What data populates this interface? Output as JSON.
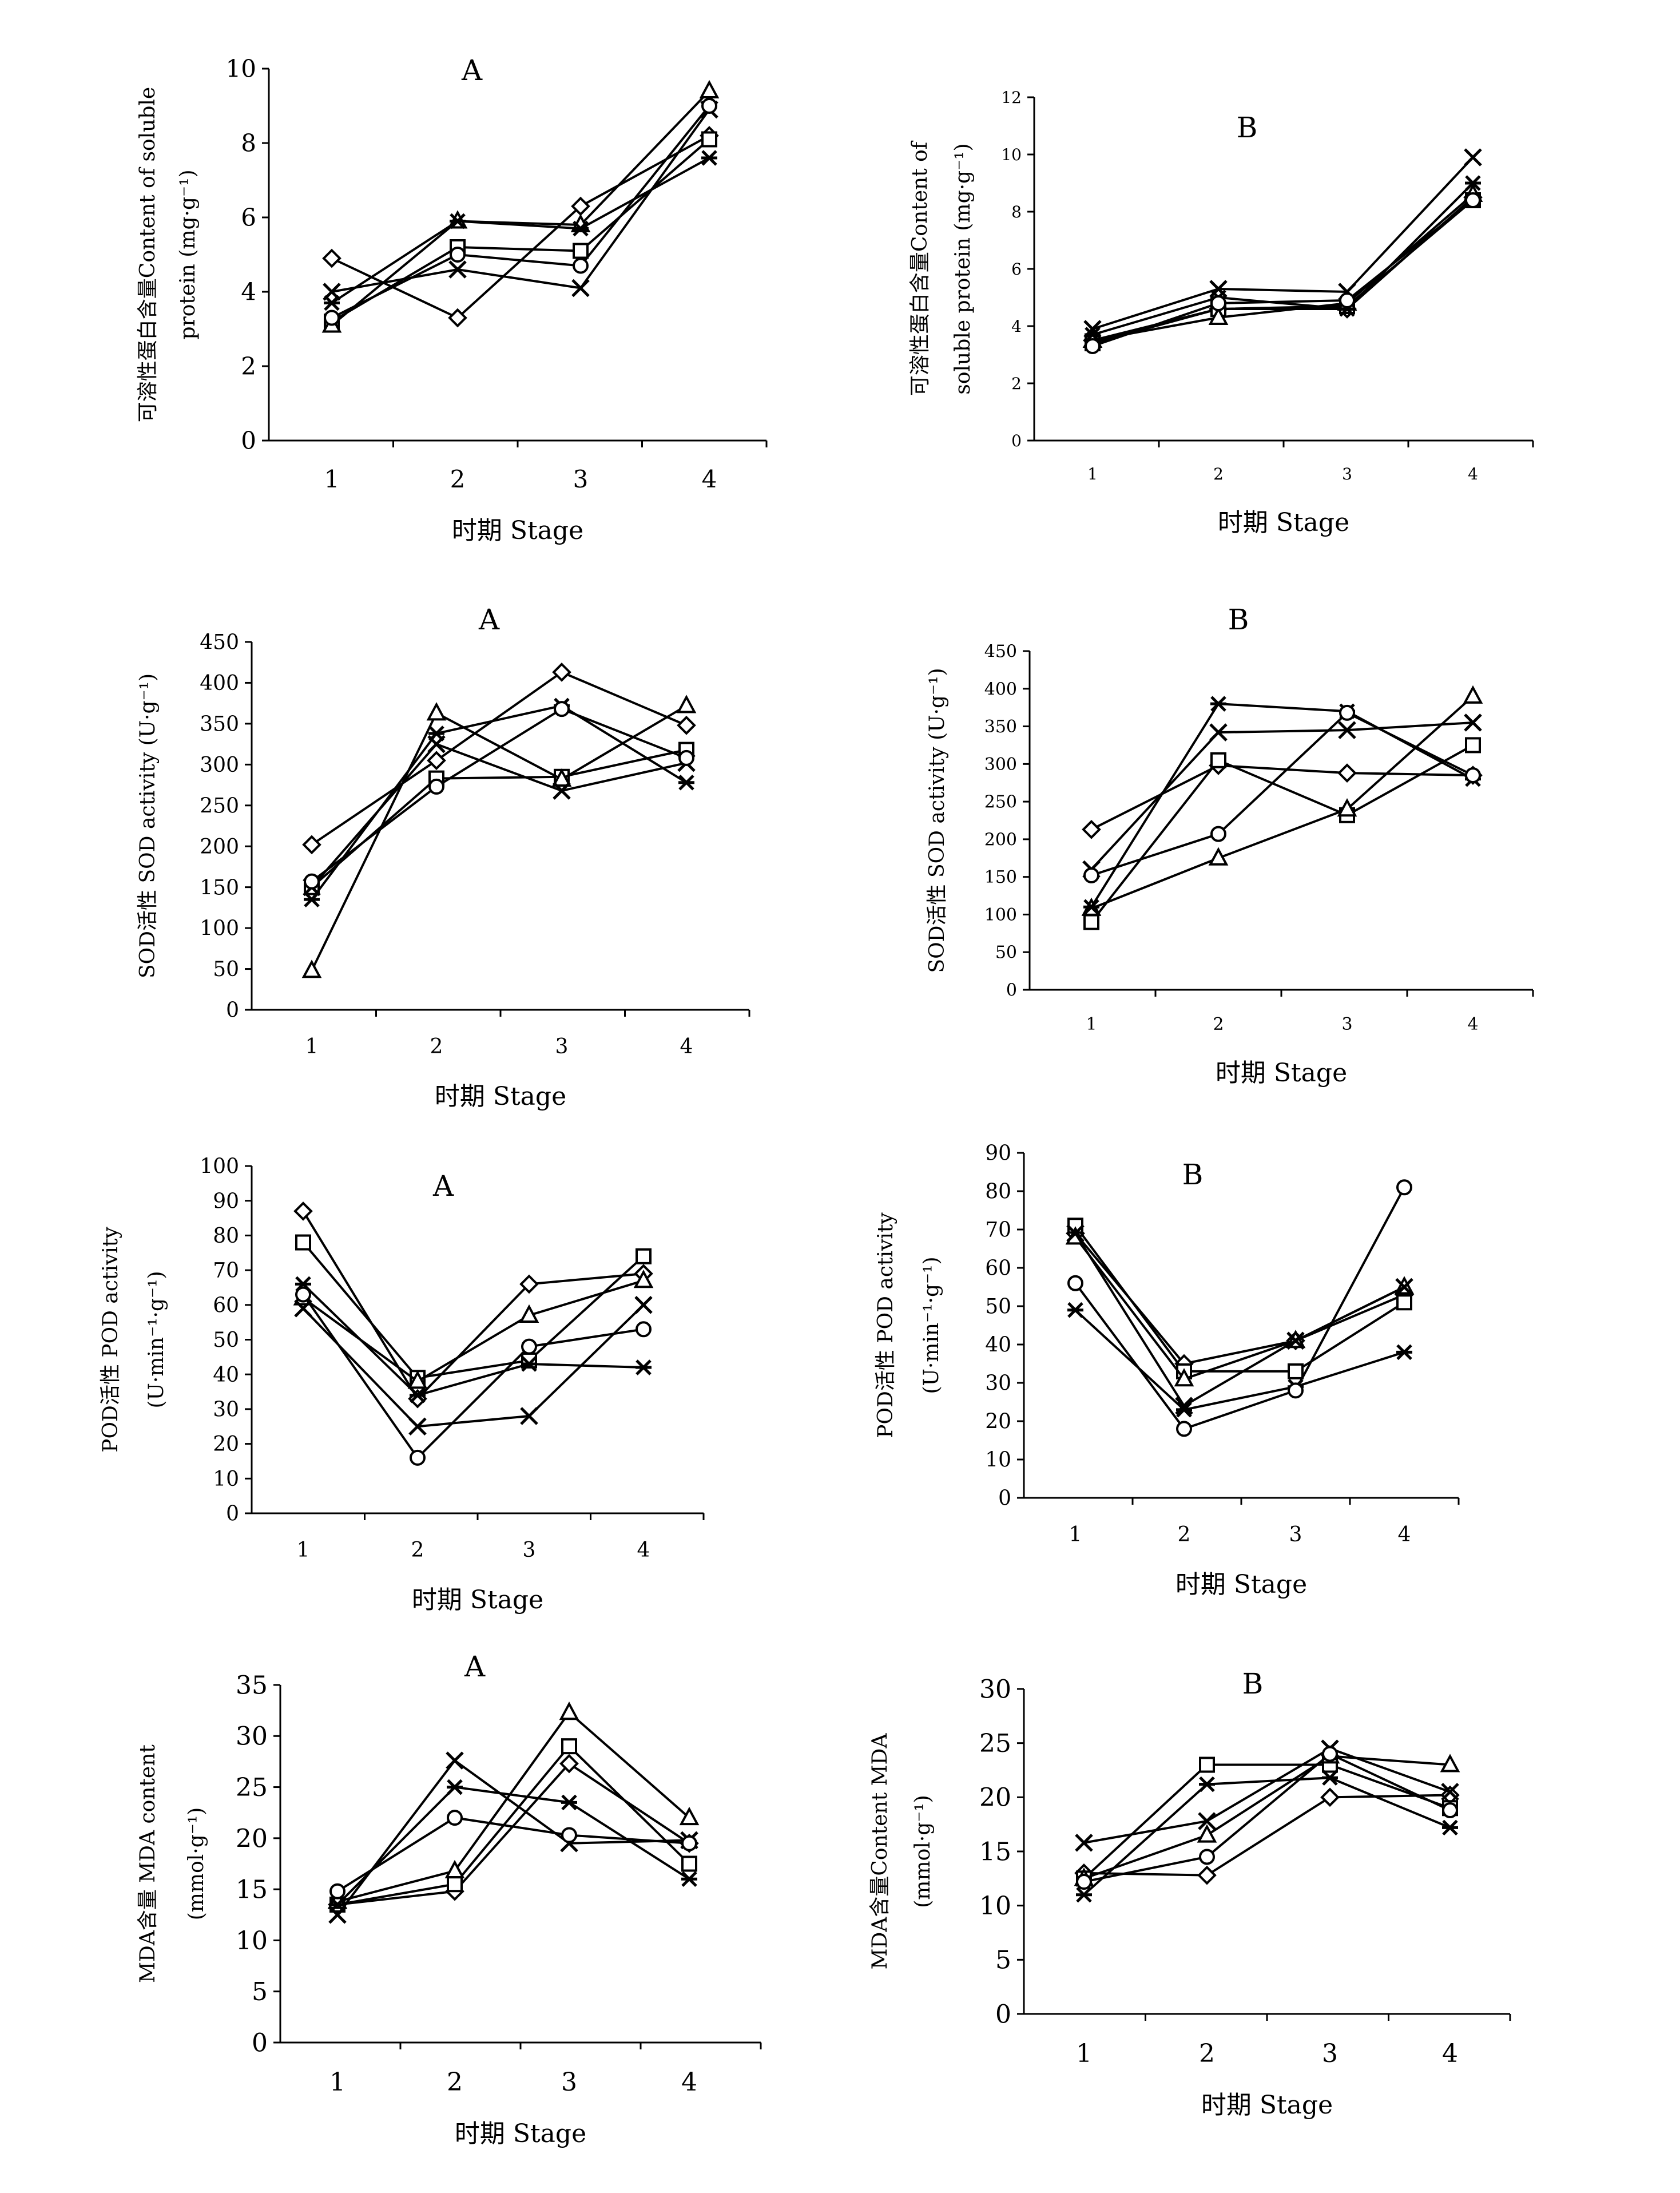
{
  "chart_data": [
    {
      "type": "line",
      "title": "A",
      "xlabel": "时期 Stage",
      "ylabel_lines": [
        "可溶性蛋白含量Content of soluble",
        "protein (mg·g⁻¹)"
      ],
      "categories": [
        "1",
        "2",
        "3",
        "4"
      ],
      "ylim": [
        0,
        10
      ],
      "yticks": [
        0,
        2,
        4,
        6,
        8,
        10
      ],
      "grid": false,
      "series": [
        {
          "marker": "diamond",
          "values": [
            4.9,
            3.3,
            6.3,
            8.2
          ]
        },
        {
          "marker": "square",
          "values": [
            3.2,
            5.2,
            5.1,
            8.1
          ]
        },
        {
          "marker": "triangle",
          "values": [
            3.1,
            5.9,
            5.8,
            9.4
          ]
        },
        {
          "marker": "x",
          "values": [
            4.0,
            4.6,
            4.1,
            8.9
          ]
        },
        {
          "marker": "asterisk",
          "values": [
            3.7,
            5.9,
            5.7,
            7.6
          ]
        },
        {
          "marker": "circle",
          "values": [
            3.3,
            5.0,
            4.7,
            9.0
          ]
        }
      ]
    },
    {
      "type": "line",
      "title": "B",
      "xlabel": "时期 Stage",
      "ylabel_lines": [
        "可溶性蛋白含量Content of",
        "soluble protein (mg·g⁻¹)"
      ],
      "categories": [
        "1",
        "2",
        "3",
        "4"
      ],
      "ylim": [
        0,
        12
      ],
      "yticks": [
        0,
        2,
        4,
        6,
        8,
        10,
        12
      ],
      "grid": false,
      "series": [
        {
          "marker": "diamond",
          "values": [
            3.5,
            4.6,
            4.6,
            8.5
          ]
        },
        {
          "marker": "square",
          "values": [
            3.4,
            4.6,
            4.7,
            8.4
          ]
        },
        {
          "marker": "triangle",
          "values": [
            3.5,
            4.3,
            4.8,
            8.6
          ]
        },
        {
          "marker": "x",
          "values": [
            3.9,
            5.3,
            5.2,
            9.9
          ]
        },
        {
          "marker": "asterisk",
          "values": [
            3.7,
            5.0,
            4.6,
            9.0
          ]
        },
        {
          "marker": "circle",
          "values": [
            3.3,
            4.8,
            4.9,
            8.4
          ]
        }
      ]
    },
    {
      "type": "line",
      "title": "A",
      "xlabel": "时期 Stage",
      "ylabel_lines": [
        "SOD活性 SOD activity (U·g⁻¹)"
      ],
      "categories": [
        "1",
        "2",
        "3",
        "4"
      ],
      "ylim": [
        0,
        450
      ],
      "yticks": [
        0,
        50,
        100,
        150,
        200,
        250,
        300,
        350,
        400,
        450
      ],
      "grid": false,
      "series": [
        {
          "marker": "diamond",
          "values": [
            202,
            305,
            413,
            348
          ]
        },
        {
          "marker": "square",
          "values": [
            150,
            283,
            285,
            318
          ]
        },
        {
          "marker": "triangle",
          "values": [
            48,
            363,
            282,
            372
          ]
        },
        {
          "marker": "x",
          "values": [
            150,
            325,
            268,
            302
          ]
        },
        {
          "marker": "asterisk",
          "values": [
            135,
            338,
            372,
            278
          ]
        },
        {
          "marker": "circle",
          "values": [
            157,
            273,
            368,
            308
          ]
        }
      ]
    },
    {
      "type": "line",
      "title": "B",
      "xlabel": "时期 Stage",
      "ylabel_lines": [
        "SOD活性 SOD activity (U·g⁻¹)"
      ],
      "categories": [
        "1",
        "2",
        "3",
        "4"
      ],
      "ylim": [
        0,
        450
      ],
      "yticks": [
        0,
        50,
        100,
        150,
        200,
        250,
        300,
        350,
        400,
        450
      ],
      "grid": false,
      "series": [
        {
          "marker": "diamond",
          "values": [
            213,
            298,
            288,
            285
          ]
        },
        {
          "marker": "square",
          "values": [
            90,
            305,
            232,
            325
          ]
        },
        {
          "marker": "triangle",
          "values": [
            108,
            175,
            240,
            390
          ]
        },
        {
          "marker": "x",
          "values": [
            160,
            342,
            345,
            355
          ]
        },
        {
          "marker": "asterisk",
          "values": [
            110,
            380,
            370,
            280
          ]
        },
        {
          "marker": "circle",
          "values": [
            152,
            207,
            368,
            285
          ]
        }
      ]
    },
    {
      "type": "line",
      "title": "A",
      "xlabel": "时期 Stage",
      "ylabel_lines": [
        "POD活性 POD activity",
        "(U·min⁻¹·g⁻¹)"
      ],
      "categories": [
        "1",
        "2",
        "3",
        "4"
      ],
      "ylim": [
        0,
        100
      ],
      "yticks": [
        0,
        10,
        20,
        30,
        40,
        50,
        60,
        70,
        80,
        90,
        100
      ],
      "grid": false,
      "series": [
        {
          "marker": "diamond",
          "values": [
            87,
            33,
            66,
            69
          ]
        },
        {
          "marker": "square",
          "values": [
            78,
            39,
            44,
            74
          ]
        },
        {
          "marker": "triangle",
          "values": [
            62,
            38,
            57,
            67
          ]
        },
        {
          "marker": "x",
          "values": [
            59,
            25,
            28,
            60
          ]
        },
        {
          "marker": "asterisk",
          "values": [
            66,
            34,
            43,
            42
          ]
        },
        {
          "marker": "circle",
          "values": [
            63,
            16,
            48,
            53
          ]
        }
      ]
    },
    {
      "type": "line",
      "title": "B",
      "xlabel": "时期 Stage",
      "ylabel_lines": [
        "POD活性 POD activity",
        "(U·min⁻¹·g⁻¹)"
      ],
      "categories": [
        "1",
        "2",
        "3",
        "4"
      ],
      "ylim": [
        0,
        90
      ],
      "yticks": [
        0,
        10,
        20,
        30,
        40,
        50,
        60,
        70,
        80,
        90
      ],
      "grid": false,
      "series": [
        {
          "marker": "diamond",
          "values": [
            69,
            35,
            41,
            53
          ]
        },
        {
          "marker": "square",
          "values": [
            71,
            33,
            33,
            51
          ]
        },
        {
          "marker": "triangle",
          "values": [
            68,
            31,
            41,
            55
          ]
        },
        {
          "marker": "x",
          "values": [
            69,
            24,
            41,
            55
          ]
        },
        {
          "marker": "asterisk",
          "values": [
            49,
            23,
            29,
            38
          ]
        },
        {
          "marker": "circle",
          "values": [
            56,
            18,
            28,
            81
          ]
        }
      ]
    },
    {
      "type": "line",
      "title": "A",
      "xlabel": "时期 Stage",
      "ylabel_lines": [
        "MDA含量 MDA content",
        "(mmol·g⁻¹)"
      ],
      "categories": [
        "1",
        "2",
        "3",
        "4"
      ],
      "ylim": [
        0,
        35
      ],
      "yticks": [
        0,
        5,
        10,
        15,
        20,
        25,
        30,
        35
      ],
      "grid": false,
      "series": [
        {
          "marker": "diamond",
          "values": [
            13.5,
            14.8,
            27.3,
            19.5
          ]
        },
        {
          "marker": "square",
          "values": [
            13.5,
            15.5,
            29.0,
            17.5
          ]
        },
        {
          "marker": "triangle",
          "values": [
            13.8,
            16.8,
            32.3,
            22.0
          ]
        },
        {
          "marker": "x",
          "values": [
            12.5,
            27.6,
            19.5,
            19.8
          ]
        },
        {
          "marker": "asterisk",
          "values": [
            13.5,
            25.0,
            23.5,
            16.0
          ]
        },
        {
          "marker": "circle",
          "values": [
            14.8,
            22.0,
            20.3,
            19.5
          ]
        }
      ]
    },
    {
      "type": "line",
      "title": "B",
      "xlabel": "时期 Stage",
      "ylabel_lines": [
        "MDA含量Content MDA",
        "(mmol·g⁻¹)"
      ],
      "categories": [
        "1",
        "2",
        "3",
        "4"
      ],
      "ylim": [
        0,
        30
      ],
      "yticks": [
        0,
        5,
        10,
        15,
        20,
        25,
        30
      ],
      "grid": false,
      "series": [
        {
          "marker": "diamond",
          "values": [
            13.0,
            12.8,
            20.0,
            20.2
          ]
        },
        {
          "marker": "square",
          "values": [
            12.5,
            23.0,
            23.0,
            19.0
          ]
        },
        {
          "marker": "triangle",
          "values": [
            12.5,
            16.5,
            23.8,
            23.0
          ]
        },
        {
          "marker": "x",
          "values": [
            15.8,
            17.8,
            24.5,
            20.5
          ]
        },
        {
          "marker": "asterisk",
          "values": [
            11.0,
            21.2,
            21.8,
            17.2
          ]
        },
        {
          "marker": "circle",
          "values": [
            12.2,
            14.5,
            24.0,
            18.8
          ]
        }
      ]
    }
  ]
}
